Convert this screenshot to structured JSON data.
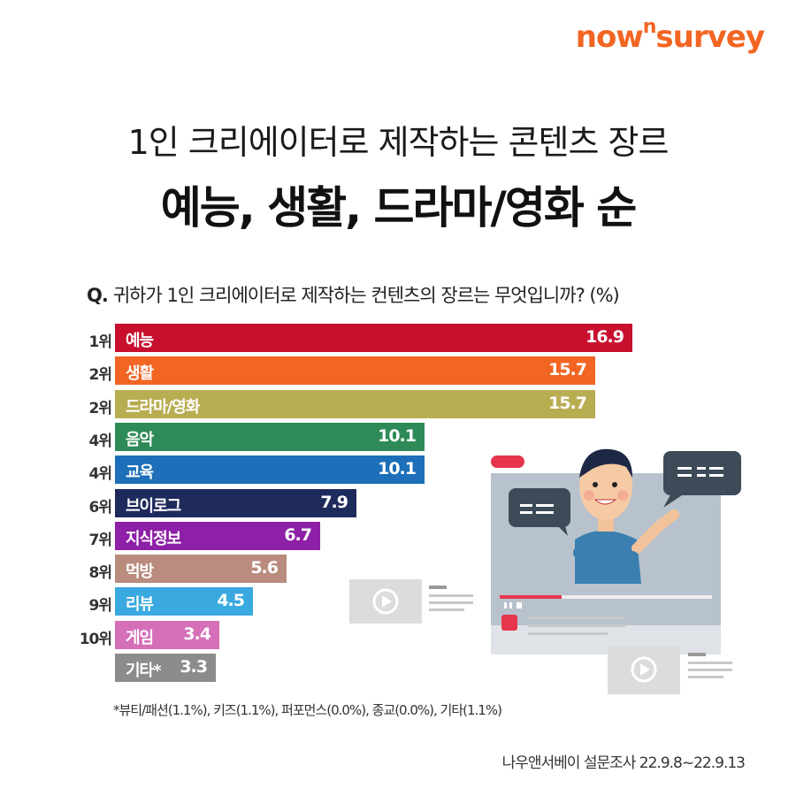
{
  "logo": {
    "part1": "now",
    "sup": "n",
    "part2": "survey"
  },
  "title_line1": "1인 크리에이터로 제작하는 콘텐츠 장르",
  "title_line2": "예능, 생활, 드라마/영화 순",
  "question": {
    "prefix": "Q.",
    "text": "귀하가 1인 크리에이터로 제작하는 컨텐츠의 장르는 무엇입니까? (%)"
  },
  "chart_data": {
    "type": "bar",
    "orientation": "horizontal",
    "title": "귀하가 1인 크리에이터로 제작하는 컨텐츠의 장르는 무엇입니까? (%)",
    "xlabel": "",
    "ylabel": "",
    "xlim": [
      0,
      16.9
    ],
    "ranks": [
      "1위",
      "2위",
      "2위",
      "4위",
      "4위",
      "6위",
      "7위",
      "8위",
      "9위",
      "10위",
      ""
    ],
    "categories": [
      "예능",
      "생활",
      "드라마/영화",
      "음악",
      "교육",
      "브이로그",
      "지식정보",
      "먹방",
      "리뷰",
      "게임",
      "기타*"
    ],
    "values": [
      16.9,
      15.7,
      15.7,
      10.1,
      10.1,
      7.9,
      6.7,
      5.6,
      4.5,
      3.4,
      3.3
    ],
    "value_labels": [
      "16.9",
      "15.7",
      "15.7",
      "10.1",
      "10.1",
      "7.9",
      "6.7",
      "5.6",
      "4.5",
      "3.4",
      "3.3"
    ],
    "colors": [
      "#c8102e",
      "#f26522",
      "#b9ad52",
      "#2e8b57",
      "#1c6fb8",
      "#1f2a5c",
      "#8e1fa7",
      "#b98c7e",
      "#3aa9e0",
      "#d46fb8",
      "#8c8c8c"
    ]
  },
  "footnote": "*뷰티/패션(1.1%), 키즈(1.1%), 퍼포먼스(0.0%), 종교(0.0%), 기타(1.1%)",
  "source": "나우앤서베이 설문조사 22.9.8~22.9.13"
}
